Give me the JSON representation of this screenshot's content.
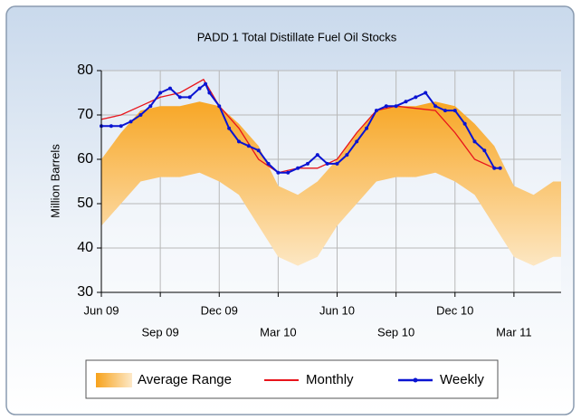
{
  "chart_data": {
    "type": "line",
    "title": "PADD 1 Total Distillate Fuel Oil Stocks",
    "ylabel": "Million Barrels",
    "grid": true,
    "legend": "bottom",
    "xlim": [
      0,
      23.4
    ],
    "xticks": [
      {
        "value": 0,
        "label": "Jun 09"
      },
      {
        "value": 3,
        "label": "Sep 09"
      },
      {
        "value": 6,
        "label": "Dec 09"
      },
      {
        "value": 9,
        "label": "Mar 10"
      },
      {
        "value": 12,
        "label": "Jun 10"
      },
      {
        "value": 15,
        "label": "Sep 10"
      },
      {
        "value": 18,
        "label": "Dec 10"
      },
      {
        "value": 21,
        "label": "Mar 11"
      }
    ],
    "ylim": [
      30,
      80
    ],
    "yticks": [
      30,
      40,
      50,
      60,
      70,
      80
    ],
    "series": [
      {
        "name": "Average Range",
        "color": "#f7a21b",
        "x": [
          0,
          1,
          2,
          3,
          4,
          5,
          6,
          7,
          8,
          9,
          10,
          11,
          12,
          13,
          14,
          15,
          16,
          17,
          18,
          19,
          20,
          21,
          22,
          23,
          23.4
        ],
        "upper": [
          60,
          66,
          71,
          72,
          72,
          73,
          72,
          68,
          63,
          54,
          52,
          55,
          60,
          66,
          71,
          72,
          72,
          73,
          72,
          68,
          63,
          54,
          52,
          55,
          55
        ],
        "lower": [
          45,
          50,
          55,
          56,
          56,
          57,
          55,
          52,
          45,
          38,
          36,
          38,
          45,
          50,
          55,
          56,
          56,
          57,
          55,
          52,
          45,
          38,
          36,
          38,
          38
        ]
      },
      {
        "name": "Monthly",
        "color": "#e8141b",
        "x": [
          0,
          1,
          2,
          3,
          4,
          5.2,
          6,
          7,
          8,
          9,
          10,
          11,
          12,
          13,
          14,
          15,
          16,
          17,
          18,
          19,
          20
        ],
        "values": [
          69,
          70,
          72,
          74,
          75,
          78,
          72,
          67,
          60,
          57,
          58,
          58,
          60,
          66,
          71,
          72,
          71.5,
          71,
          66,
          60,
          58
        ]
      },
      {
        "name": "Weekly",
        "color": "#0a14d2",
        "x": [
          0,
          0.5,
          1,
          1.5,
          2,
          2.5,
          3,
          3.5,
          4,
          4.5,
          5,
          5.3,
          5.5,
          6,
          6.5,
          7,
          7.5,
          8,
          8.5,
          9,
          9.5,
          10,
          10.5,
          11,
          11.5,
          12,
          12.5,
          13,
          13.5,
          14,
          14.5,
          15,
          15.5,
          16,
          16.5,
          17,
          17.5,
          18,
          18.5,
          19,
          19.5,
          20,
          20.3
        ],
        "values": [
          67.5,
          67.5,
          67.5,
          68.5,
          70,
          72,
          75,
          76,
          74,
          74,
          76,
          77,
          75,
          72,
          67,
          64,
          63,
          62,
          59,
          57,
          57,
          58,
          59,
          61,
          59,
          59,
          61,
          64,
          67,
          71,
          72,
          72,
          73,
          74,
          75,
          72,
          71,
          71,
          68,
          64,
          62,
          58,
          58
        ]
      }
    ]
  }
}
